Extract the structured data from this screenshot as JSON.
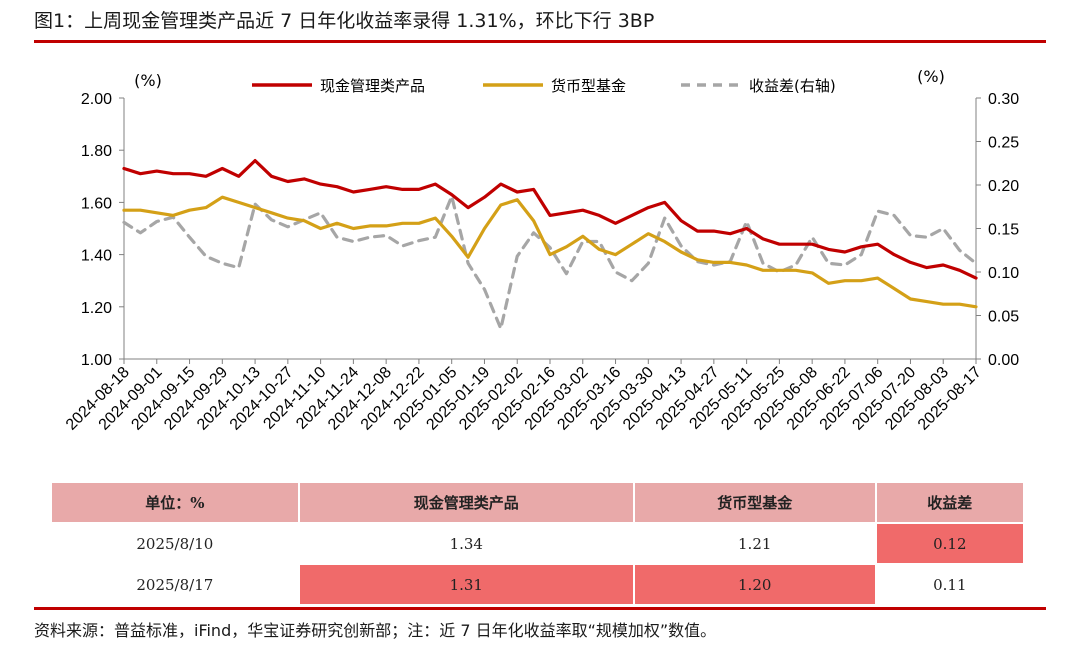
{
  "title": "图1：上周现金管理类产品近 7 日年化收益率录得 1.31%，环比下行 3BP",
  "chart_data": {
    "type": "line",
    "left_unit": "(%)",
    "right_unit": "(%)",
    "left_axis": {
      "min": 1.0,
      "max": 2.0,
      "ticks": [
        "1.00",
        "1.20",
        "1.40",
        "1.60",
        "1.80",
        "2.00"
      ]
    },
    "right_axis": {
      "min": 0.0,
      "max": 0.3,
      "ticks": [
        "0.00",
        "0.05",
        "0.10",
        "0.15",
        "0.20",
        "0.25",
        "0.30"
      ]
    },
    "x_labels": [
      "2024-08-18",
      "2024-09-01",
      "2024-09-15",
      "2024-09-29",
      "2024-10-13",
      "2024-10-27",
      "2024-11-10",
      "2024-11-24",
      "2024-12-08",
      "2024-12-22",
      "2025-01-05",
      "2025-01-19",
      "2025-02-02",
      "2025-02-16",
      "2025-03-02",
      "2025-03-16",
      "2025-03-30",
      "2025-04-13",
      "2025-04-27",
      "2025-05-11",
      "2025-05-25",
      "2025-06-08",
      "2025-06-22",
      "2025-07-06",
      "2025-07-20",
      "2025-08-03",
      "2025-08-17"
    ],
    "x_start": "2024-08-18",
    "x_end": "2025-08-17",
    "grid": false,
    "legend_position": "top",
    "series": [
      {
        "name": "现金管理类产品",
        "axis": "left",
        "color": "#c00000",
        "dash": false,
        "points": [
          [
            "2024-08-18",
            1.73
          ],
          [
            "2024-08-25",
            1.71
          ],
          [
            "2024-09-01",
            1.72
          ],
          [
            "2024-09-08",
            1.71
          ],
          [
            "2024-09-15",
            1.71
          ],
          [
            "2024-09-22",
            1.7
          ],
          [
            "2024-09-29",
            1.73
          ],
          [
            "2024-10-06",
            1.7
          ],
          [
            "2024-10-13",
            1.76
          ],
          [
            "2024-10-20",
            1.7
          ],
          [
            "2024-10-27",
            1.68
          ],
          [
            "2024-11-03",
            1.69
          ],
          [
            "2024-11-10",
            1.67
          ],
          [
            "2024-11-17",
            1.66
          ],
          [
            "2024-11-24",
            1.64
          ],
          [
            "2024-12-01",
            1.65
          ],
          [
            "2024-12-08",
            1.66
          ],
          [
            "2024-12-15",
            1.65
          ],
          [
            "2024-12-22",
            1.65
          ],
          [
            "2024-12-29",
            1.67
          ],
          [
            "2025-01-05",
            1.63
          ],
          [
            "2025-01-12",
            1.58
          ],
          [
            "2025-01-19",
            1.62
          ],
          [
            "2025-01-26",
            1.67
          ],
          [
            "2025-02-02",
            1.64
          ],
          [
            "2025-02-09",
            1.65
          ],
          [
            "2025-02-16",
            1.55
          ],
          [
            "2025-02-23",
            1.56
          ],
          [
            "2025-03-02",
            1.57
          ],
          [
            "2025-03-09",
            1.55
          ],
          [
            "2025-03-16",
            1.52
          ],
          [
            "2025-03-23",
            1.55
          ],
          [
            "2025-03-30",
            1.58
          ],
          [
            "2025-04-06",
            1.6
          ],
          [
            "2025-04-13",
            1.53
          ],
          [
            "2025-04-20",
            1.49
          ],
          [
            "2025-04-27",
            1.49
          ],
          [
            "2025-05-04",
            1.48
          ],
          [
            "2025-05-11",
            1.5
          ],
          [
            "2025-05-18",
            1.46
          ],
          [
            "2025-05-25",
            1.44
          ],
          [
            "2025-06-01",
            1.44
          ],
          [
            "2025-06-08",
            1.44
          ],
          [
            "2025-06-15",
            1.42
          ],
          [
            "2025-06-22",
            1.41
          ],
          [
            "2025-06-29",
            1.43
          ],
          [
            "2025-07-06",
            1.44
          ],
          [
            "2025-07-13",
            1.4
          ],
          [
            "2025-07-20",
            1.37
          ],
          [
            "2025-07-27",
            1.35
          ],
          [
            "2025-08-03",
            1.36
          ],
          [
            "2025-08-10",
            1.34
          ],
          [
            "2025-08-17",
            1.31
          ]
        ]
      },
      {
        "name": "货币型基金",
        "axis": "left",
        "color": "#d4a017",
        "dash": false,
        "points": [
          [
            "2024-08-18",
            1.57
          ],
          [
            "2024-08-25",
            1.57
          ],
          [
            "2024-09-01",
            1.56
          ],
          [
            "2024-09-08",
            1.55
          ],
          [
            "2024-09-15",
            1.57
          ],
          [
            "2024-09-22",
            1.58
          ],
          [
            "2024-09-29",
            1.62
          ],
          [
            "2024-10-06",
            1.6
          ],
          [
            "2024-10-13",
            1.58
          ],
          [
            "2024-10-20",
            1.56
          ],
          [
            "2024-10-27",
            1.54
          ],
          [
            "2024-11-03",
            1.53
          ],
          [
            "2024-11-10",
            1.5
          ],
          [
            "2024-11-17",
            1.52
          ],
          [
            "2024-11-24",
            1.5
          ],
          [
            "2024-12-01",
            1.51
          ],
          [
            "2024-12-08",
            1.51
          ],
          [
            "2024-12-15",
            1.52
          ],
          [
            "2024-12-22",
            1.52
          ],
          [
            "2024-12-29",
            1.54
          ],
          [
            "2025-01-05",
            1.47
          ],
          [
            "2025-01-12",
            1.39
          ],
          [
            "2025-01-19",
            1.5
          ],
          [
            "2025-01-26",
            1.59
          ],
          [
            "2025-02-02",
            1.61
          ],
          [
            "2025-02-09",
            1.53
          ],
          [
            "2025-02-16",
            1.4
          ],
          [
            "2025-02-23",
            1.43
          ],
          [
            "2025-03-02",
            1.47
          ],
          [
            "2025-03-09",
            1.42
          ],
          [
            "2025-03-16",
            1.4
          ],
          [
            "2025-03-23",
            1.44
          ],
          [
            "2025-03-30",
            1.48
          ],
          [
            "2025-04-06",
            1.45
          ],
          [
            "2025-04-13",
            1.41
          ],
          [
            "2025-04-20",
            1.38
          ],
          [
            "2025-04-27",
            1.37
          ],
          [
            "2025-05-04",
            1.37
          ],
          [
            "2025-05-11",
            1.36
          ],
          [
            "2025-05-18",
            1.34
          ],
          [
            "2025-05-25",
            1.34
          ],
          [
            "2025-06-01",
            1.34
          ],
          [
            "2025-06-08",
            1.33
          ],
          [
            "2025-06-15",
            1.29
          ],
          [
            "2025-06-22",
            1.3
          ],
          [
            "2025-06-29",
            1.3
          ],
          [
            "2025-07-06",
            1.31
          ],
          [
            "2025-07-13",
            1.27
          ],
          [
            "2025-07-20",
            1.23
          ],
          [
            "2025-07-27",
            1.22
          ],
          [
            "2025-08-03",
            1.21
          ],
          [
            "2025-08-10",
            1.21
          ],
          [
            "2025-08-17",
            1.2
          ]
        ]
      },
      {
        "name": "收益差(右轴)",
        "axis": "right",
        "color": "#a6a6a6",
        "dash": true,
        "points": [
          [
            "2024-08-18",
            0.157
          ],
          [
            "2024-08-25",
            0.145
          ],
          [
            "2024-09-01",
            0.158
          ],
          [
            "2024-09-08",
            0.163
          ],
          [
            "2024-09-15",
            0.14
          ],
          [
            "2024-09-22",
            0.118
          ],
          [
            "2024-09-29",
            0.11
          ],
          [
            "2024-10-06",
            0.105
          ],
          [
            "2024-10-13",
            0.178
          ],
          [
            "2024-10-20",
            0.16
          ],
          [
            "2024-10-27",
            0.152
          ],
          [
            "2024-11-03",
            0.16
          ],
          [
            "2024-11-10",
            0.168
          ],
          [
            "2024-11-17",
            0.14
          ],
          [
            "2024-11-24",
            0.135
          ],
          [
            "2024-12-01",
            0.14
          ],
          [
            "2024-12-08",
            0.142
          ],
          [
            "2024-12-15",
            0.13
          ],
          [
            "2024-12-22",
            0.136
          ],
          [
            "2024-12-29",
            0.14
          ],
          [
            "2025-01-05",
            0.187
          ],
          [
            "2025-01-12",
            0.11
          ],
          [
            "2025-01-19",
            0.08
          ],
          [
            "2025-01-26",
            0.035
          ],
          [
            "2025-02-02",
            0.118
          ],
          [
            "2025-02-09",
            0.145
          ],
          [
            "2025-02-16",
            0.128
          ],
          [
            "2025-02-23",
            0.098
          ],
          [
            "2025-03-02",
            0.135
          ],
          [
            "2025-03-09",
            0.135
          ],
          [
            "2025-03-16",
            0.1
          ],
          [
            "2025-03-23",
            0.09
          ],
          [
            "2025-03-30",
            0.11
          ],
          [
            "2025-04-06",
            0.162
          ],
          [
            "2025-04-13",
            0.13
          ],
          [
            "2025-04-20",
            0.112
          ],
          [
            "2025-04-27",
            0.108
          ],
          [
            "2025-05-04",
            0.112
          ],
          [
            "2025-05-11",
            0.158
          ],
          [
            "2025-05-18",
            0.11
          ],
          [
            "2025-05-25",
            0.1
          ],
          [
            "2025-06-01",
            0.108
          ],
          [
            "2025-06-08",
            0.14
          ],
          [
            "2025-06-15",
            0.11
          ],
          [
            "2025-06-22",
            0.108
          ],
          [
            "2025-06-29",
            0.12
          ],
          [
            "2025-07-06",
            0.17
          ],
          [
            "2025-07-13",
            0.165
          ],
          [
            "2025-07-20",
            0.142
          ],
          [
            "2025-07-27",
            0.14
          ],
          [
            "2025-08-03",
            0.15
          ],
          [
            "2025-08-10",
            0.125
          ],
          [
            "2025-08-17",
            0.11
          ]
        ]
      }
    ]
  },
  "table": {
    "headers": [
      "单位：%",
      "现金管理类产品",
      "货币型基金",
      "收益差"
    ],
    "rows": [
      {
        "date": "2025/8/10",
        "cash": "1.34",
        "fund": "1.21",
        "spread": "0.12"
      },
      {
        "date": "2025/8/17",
        "cash": "1.31",
        "fund": "1.20",
        "spread": "0.11"
      }
    ],
    "highlight_color": "#f06a6a",
    "header_color": "#e8a9a9"
  },
  "source_note": "资料来源：普益标准，iFind，华宝证券研究创新部；注：近 7 日年化收益率取“规模加权”数值。"
}
